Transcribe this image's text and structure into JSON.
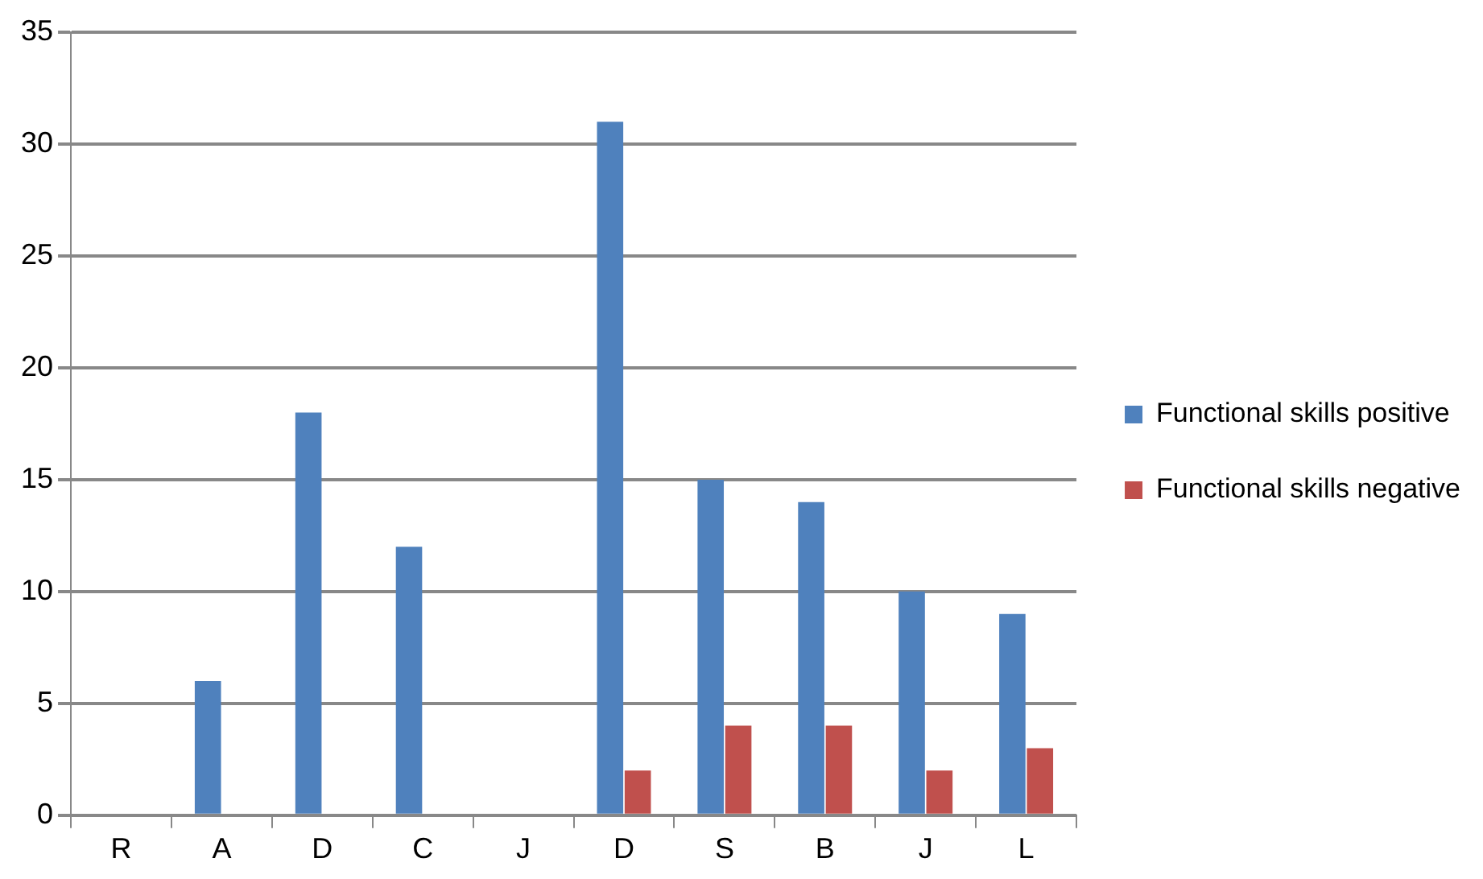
{
  "chart_data": {
    "type": "bar",
    "categories": [
      "R",
      "A",
      "D",
      "C",
      "J",
      "D",
      "S",
      "B",
      "J",
      "L"
    ],
    "series": [
      {
        "name": "Functional skills positive",
        "color": "#4f81bd",
        "values": [
          0,
          6,
          18,
          12,
          0,
          31,
          15,
          14,
          10,
          9
        ]
      },
      {
        "name": "Functional skills negative",
        "color": "#c0504d",
        "values": [
          0,
          0,
          0,
          0,
          0,
          2,
          4,
          4,
          2,
          3
        ]
      }
    ],
    "ylim": [
      0,
      35
    ],
    "yticks": [
      0,
      5,
      10,
      15,
      20,
      25,
      30,
      35
    ],
    "grid": "y",
    "legend": "right"
  }
}
